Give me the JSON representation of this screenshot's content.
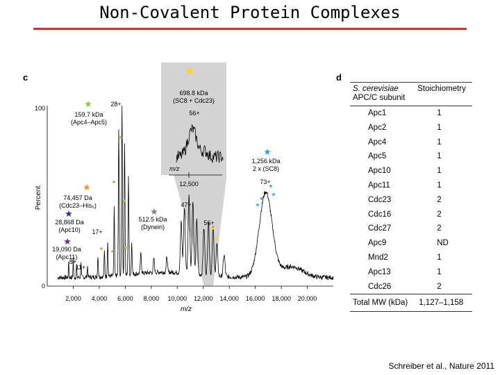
{
  "slide": {
    "title": "Non-Covalent Protein Complexes",
    "citation": "Schreiber et al., Nature 2011"
  },
  "colors": {
    "title_rule": "#c0392b",
    "inset_bg": "#d3d3d3",
    "green_star": "#8dc63f",
    "orange_star": "#f7941d",
    "navy_star": "#2e3192",
    "purple_star": "#662d91",
    "gray_star": "#808080",
    "cyan_star": "#29abe2",
    "yellow_star": "#f9d71c"
  },
  "panel_c": {
    "letter": "c",
    "chart_data": {
      "type": "line",
      "ylabel": "Percent",
      "xlabel": "m/z",
      "y_ticks": [
        "0",
        "100"
      ],
      "x_ticks": [
        "2,000",
        "4,000",
        "6,000",
        "8,000",
        "10,000",
        "12,000",
        "14,000",
        "16,000",
        "18,000",
        "20,000"
      ],
      "x_range": [
        0,
        22000
      ],
      "y_range": [
        0,
        100
      ],
      "annotations": [
        {
          "id": "apc4",
          "lines": [
            "159.7 kDa",
            "(Apc4–Apc5)"
          ],
          "star": "green"
        },
        {
          "id": "cdc23",
          "lines": [
            "74,457 Da",
            "(Cdc23–His₆)"
          ],
          "star": "orange"
        },
        {
          "id": "apc10",
          "lines": [
            "28,868 Da",
            "(Apc10)"
          ],
          "star": "navy"
        },
        {
          "id": "apc11",
          "lines": [
            "19,090 Da",
            "(Apc11)"
          ],
          "star": "purple"
        },
        {
          "id": "dynein",
          "lines": [
            "512.5 kDa",
            "(Dynein)"
          ],
          "star": "gray"
        },
        {
          "id": "sc8",
          "lines": [
            "1,256 kDa",
            "2 x (SC8)"
          ],
          "star": "cyan"
        }
      ],
      "charge_labels": [
        "28+",
        "17+",
        "8+",
        "11+",
        "47+",
        "56+",
        "73+"
      ],
      "inset": {
        "star": "yellow",
        "lines": [
          "698.8 kDa",
          "(SC8 + Cdc23)"
        ],
        "charge": "56+",
        "axis_label": "m/z",
        "tick": "12,500"
      }
    }
  },
  "panel_d": {
    "letter": "d",
    "header_organism": "S. cerevisiae",
    "header_subunit": "APC/C subunit",
    "header_stoich": "Stoichiometry",
    "rows": [
      {
        "subunit": "Apc1",
        "value": "1"
      },
      {
        "subunit": "Apc2",
        "value": "1"
      },
      {
        "subunit": "Apc4",
        "value": "1"
      },
      {
        "subunit": "Apc5",
        "value": "1"
      },
      {
        "subunit": "Apc10",
        "value": "1"
      },
      {
        "subunit": "Apc11",
        "value": "1"
      },
      {
        "subunit": "Cdc23",
        "value": "2"
      },
      {
        "subunit": "Cdc16",
        "value": "2"
      },
      {
        "subunit": "Cdc27",
        "value": "2"
      },
      {
        "subunit": "Apc9",
        "value": "ND"
      },
      {
        "subunit": "Mnd2",
        "value": "1"
      },
      {
        "subunit": "Apc13",
        "value": "1"
      },
      {
        "subunit": "Cdc26",
        "value": "2"
      }
    ],
    "total_label": "Total MW (kDa)",
    "total_value": "1,127–1,158"
  }
}
